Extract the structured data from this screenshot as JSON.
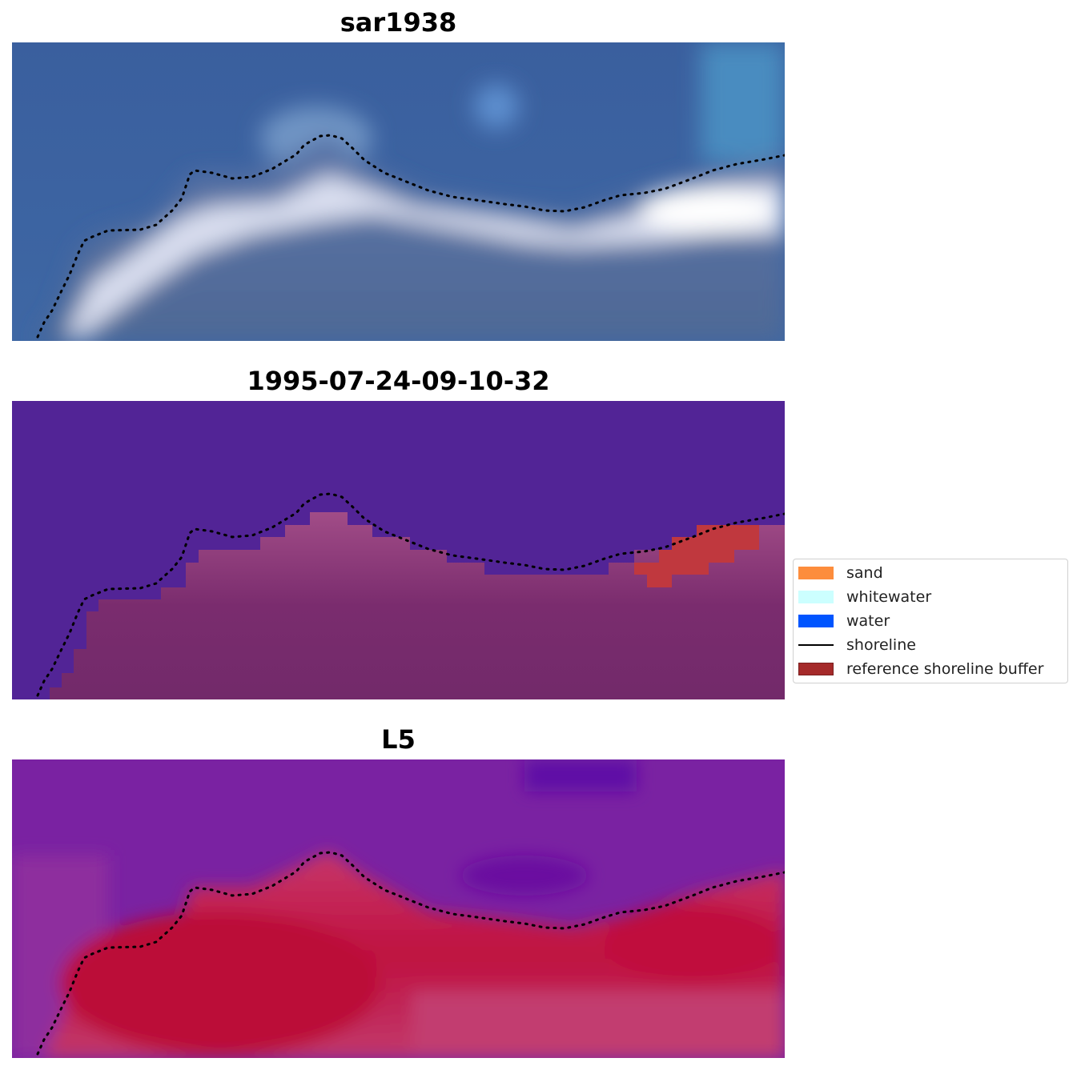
{
  "panels": [
    {
      "title": "sar1938"
    },
    {
      "title": "1995-07-24-09-10-32"
    },
    {
      "title": "L5"
    }
  ],
  "legend": {
    "items": [
      {
        "label": "sand",
        "color": "#fd8d3c",
        "kind": "patch"
      },
      {
        "label": "whitewater",
        "color": "#ccffff",
        "kind": "patch"
      },
      {
        "label": "water",
        "color": "#0055ff",
        "kind": "patch"
      },
      {
        "label": "shoreline",
        "color": "#000000",
        "kind": "line"
      },
      {
        "label": "reference shoreline buffer",
        "color": "#a52a2a",
        "kind": "patch"
      }
    ]
  },
  "colors": {
    "panel1_water": "#3a62a0",
    "panel1_land": "#51699a",
    "panel1_whitewater": "#e4e9f4",
    "panel2_water": "#522496",
    "panel2_land": "#722a6a",
    "panel2_buffer": "#c0383e",
    "panel3_water": "#7a1fa0",
    "panel3_land": "#c01040",
    "shoreline": "#000000"
  }
}
